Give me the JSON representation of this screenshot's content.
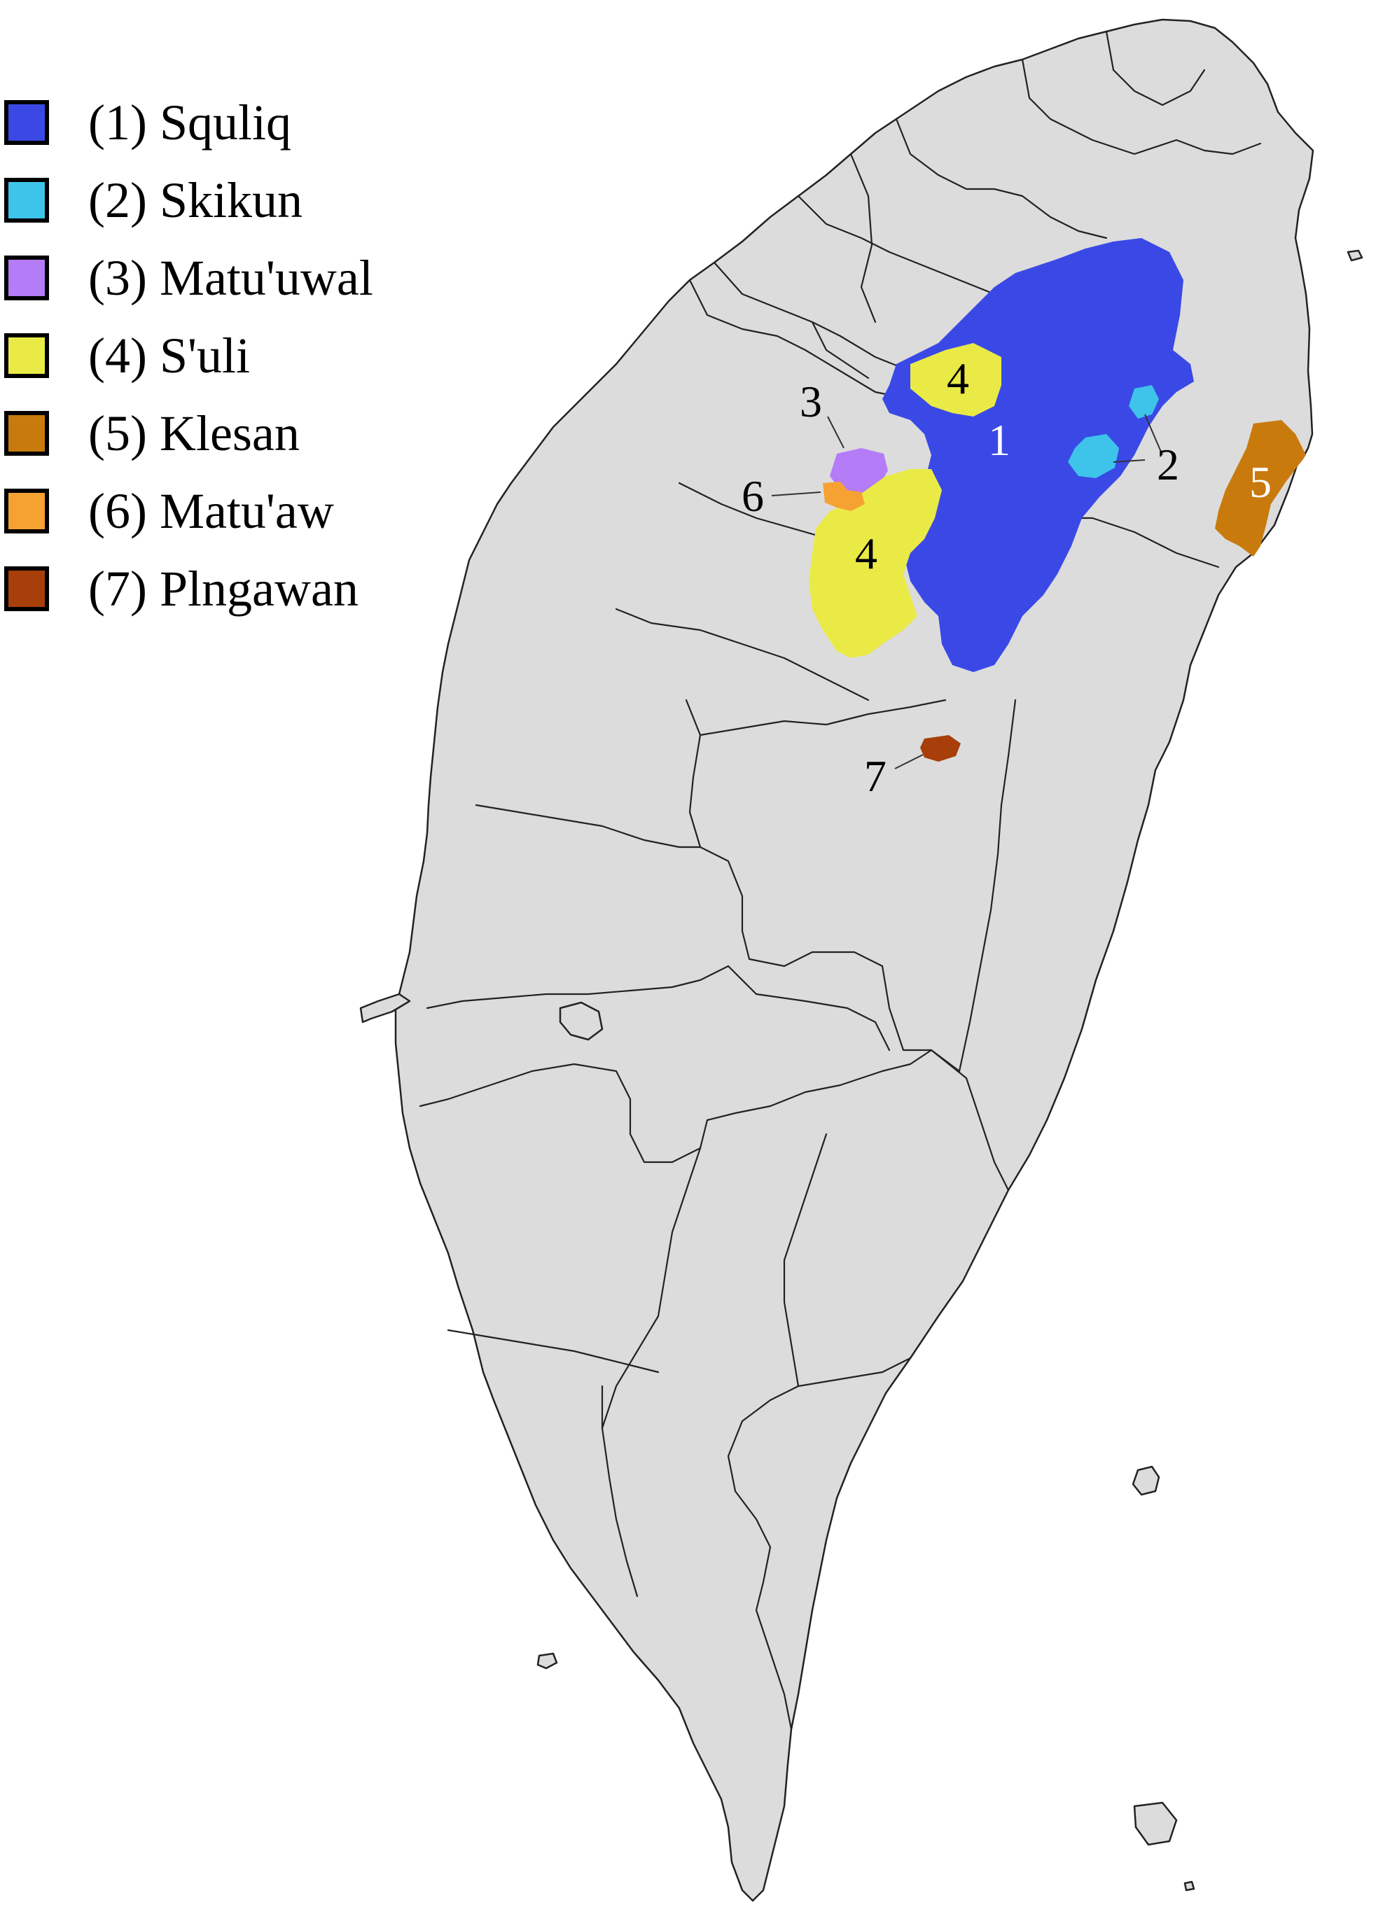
{
  "legend": [
    {
      "label": "(1) Squliq",
      "color": "#3a49e6"
    },
    {
      "label": "(2) Skikun",
      "color": "#3ec4ea"
    },
    {
      "label": "(3) Matu'uwal",
      "color": "#b57cf7"
    },
    {
      "label": "(4) S'uli",
      "color": "#eaea46"
    },
    {
      "label": "(5) Klesan",
      "color": "#c97a0c"
    },
    {
      "label": "(6) Matu'aw",
      "color": "#f5a233"
    },
    {
      "label": "(7) Plngawan",
      "color": "#a83e0a"
    }
  ],
  "labels": {
    "r1": "1",
    "r2": "2",
    "r3": "3",
    "r4a": "4",
    "r4b": "4",
    "r5": "5",
    "r6": "6",
    "r7": "7"
  },
  "colors": {
    "land": "#dcdcdc",
    "border": "#222222"
  }
}
